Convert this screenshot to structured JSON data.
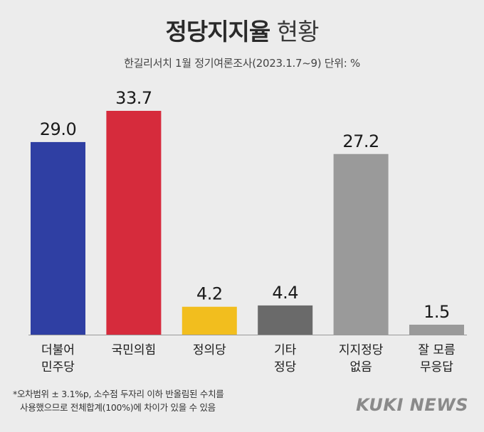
{
  "title_main": "정당지지율",
  "title_sub": "현황",
  "subtitle": "한길리서치 1월 정기여론조사(2023.1.7~9) 단위: %",
  "footnote_line1": "*오차범위 ± 3.1%p, 소수점 두자리 이하 반올림된 수치를",
  "footnote_line2": "사용했으므로 전체합계(100%)에 차이가 있을 수 있음",
  "logo": "KUKI NEWS",
  "chart_data": {
    "type": "bar",
    "categories": [
      "더불어\n민주당",
      "국민의힘",
      "정의당",
      "기타\n정당",
      "지지정당\n없음",
      "잘 모름\n무응답"
    ],
    "values": [
      29.0,
      33.7,
      4.2,
      4.4,
      27.2,
      1.5
    ],
    "value_labels": [
      "29.0",
      "33.7",
      "4.2",
      "4.4",
      "27.2",
      "1.5"
    ],
    "colors": [
      "#2f3fa3",
      "#d62b3c",
      "#f2be1e",
      "#6a6a6a",
      "#9a9a9a",
      "#9a9a9a"
    ],
    "title": "정당지지율 현황",
    "xlabel": "",
    "ylabel": "",
    "ylim": [
      0,
      33.7
    ],
    "grid": false
  }
}
